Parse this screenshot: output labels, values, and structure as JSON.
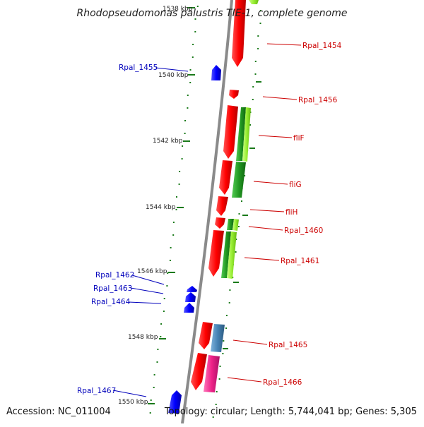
{
  "title": "Rhodopseudomonas palustris TIE-1, complete genome",
  "footer": {
    "accession": "Accession: NC_011004",
    "topology": "Topology: circular; Length: 5,744,041 bp; Genes: 5,305"
  },
  "colors": {
    "backbone": "#8a8a8a",
    "label_red": "#cc0000",
    "label_blue": "#0000bb",
    "tick_green": "#1a7a1a",
    "gene_red": "#ee0000",
    "gene_blue": "#0000ee",
    "gene_green": "#22aa22",
    "gene_lightgreen": "#99ee44",
    "gene_steelblue": "#4682b4",
    "gene_pink": "#ee2288"
  },
  "ticks": [
    "1538 kbp",
    "1540 kbp",
    "1542 kbp",
    "1544 kbp",
    "1546 kbp",
    "1548 kbp",
    "1550 kbp"
  ],
  "genes": [
    {
      "name": "Rpal_1454",
      "side": "right"
    },
    {
      "name": "Rpal_1455",
      "side": "left"
    },
    {
      "name": "Rpal_1456",
      "side": "right"
    },
    {
      "name": "fliF",
      "side": "right"
    },
    {
      "name": "fliG",
      "side": "right"
    },
    {
      "name": "fliH",
      "side": "right"
    },
    {
      "name": "Rpal_1460",
      "side": "right"
    },
    {
      "name": "Rpal_1461",
      "side": "right"
    },
    {
      "name": "Rpal_1462",
      "side": "left"
    },
    {
      "name": "Rpal_1463",
      "side": "left"
    },
    {
      "name": "Rpal_1464",
      "side": "left"
    },
    {
      "name": "Rpal_1465",
      "side": "right"
    },
    {
      "name": "Rpal_1466",
      "side": "right"
    },
    {
      "name": "Rpal_1467",
      "side": "left"
    }
  ]
}
